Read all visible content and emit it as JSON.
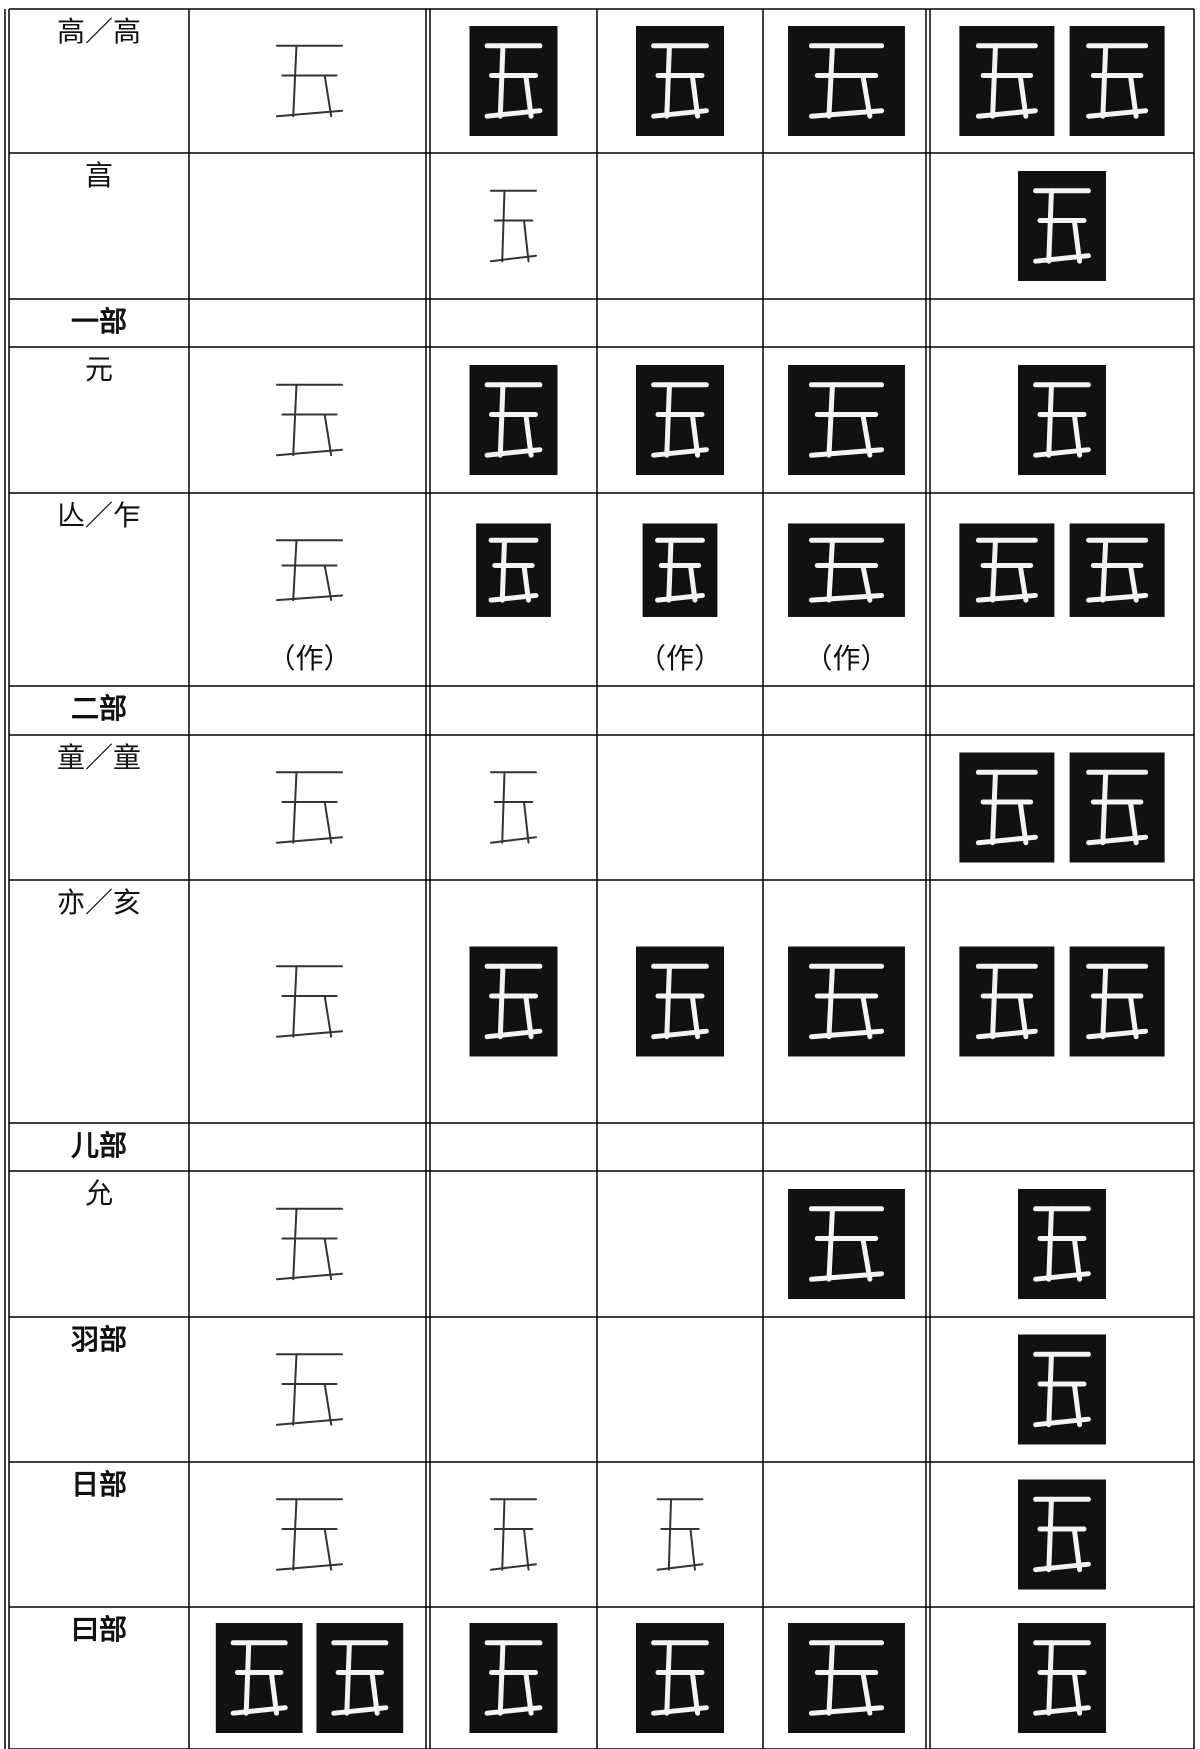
{
  "table": {
    "rows": [
      {
        "label": "高／高"
      },
      {
        "label": "亯"
      },
      {
        "label": "一部"
      },
      {
        "label": "元"
      },
      {
        "label": "亾／乍",
        "notes": [
          "（作）",
          "（作）",
          "（作）"
        ]
      },
      {
        "label": "二部"
      },
      {
        "label": "童／童"
      },
      {
        "label": "亦／亥"
      },
      {
        "label": "儿部"
      },
      {
        "label": "允"
      },
      {
        "label": "羽部"
      },
      {
        "label": "日部"
      },
      {
        "label": "曰部"
      }
    ]
  }
}
